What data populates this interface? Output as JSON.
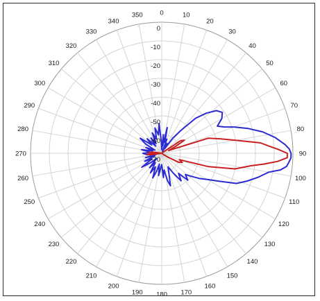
{
  "chart_data": {
    "type": "polar-line",
    "title": "",
    "angle_unit": "degrees",
    "angle_direction": "clockwise",
    "angle_zero": "top",
    "angle_ticks": [
      0,
      10,
      20,
      30,
      40,
      50,
      60,
      70,
      80,
      90,
      100,
      110,
      120,
      130,
      140,
      150,
      160,
      170,
      180,
      190,
      200,
      210,
      220,
      230,
      240,
      250,
      260,
      270,
      280,
      290,
      300,
      310,
      320,
      330,
      340,
      350
    ],
    "angle_tick_labels": [
      "0",
      "10",
      "20",
      "30",
      "40",
      "50",
      "60",
      "70",
      "80",
      "90",
      "100",
      "110",
      "120",
      "130",
      "140",
      "150",
      "160",
      "170",
      "180",
      "190",
      "200",
      "210",
      "220",
      "230",
      "240",
      "250",
      "260",
      "270",
      "280",
      "290",
      "300",
      "310",
      "320",
      "330",
      "340",
      "350"
    ],
    "radial_range": [
      -70,
      0
    ],
    "radial_ticks": [
      0,
      -10,
      -20,
      -30,
      -40,
      -50,
      -60,
      -70
    ],
    "radial_tick_labels": [
      "0",
      "-10",
      "-20",
      "-30",
      "-40",
      "-50",
      "-60",
      "-70"
    ],
    "grid": true,
    "series": [
      {
        "color": "#2a2ad0",
        "points": [
          [
            0,
            -68
          ],
          [
            5,
            -60
          ],
          [
            8,
            -66
          ],
          [
            12,
            -56
          ],
          [
            16,
            -64
          ],
          [
            20,
            -62
          ],
          [
            24,
            -69
          ],
          [
            28,
            -64
          ],
          [
            32,
            -67
          ],
          [
            36,
            -60
          ],
          [
            40,
            -54
          ],
          [
            44,
            -44
          ],
          [
            48,
            -38
          ],
          [
            52,
            -33
          ],
          [
            56,
            -31
          ],
          [
            60,
            -33
          ],
          [
            64,
            -37
          ],
          [
            67,
            -34
          ],
          [
            70,
            -29
          ],
          [
            74,
            -22
          ],
          [
            78,
            -15
          ],
          [
            82,
            -9
          ],
          [
            86,
            -4
          ],
          [
            88,
            -2
          ],
          [
            90,
            -1
          ],
          [
            92,
            -1
          ],
          [
            94,
            -2
          ],
          [
            96,
            -3
          ],
          [
            98,
            -6
          ],
          [
            100,
            -12
          ],
          [
            104,
            -17
          ],
          [
            108,
            -22
          ],
          [
            112,
            -27
          ],
          [
            116,
            -36
          ],
          [
            120,
            -42
          ],
          [
            124,
            -46
          ],
          [
            128,
            -50
          ],
          [
            132,
            -53
          ],
          [
            136,
            -50
          ],
          [
            140,
            -56
          ],
          [
            145,
            -52
          ],
          [
            150,
            -58
          ],
          [
            155,
            -62
          ],
          [
            160,
            -59
          ],
          [
            165,
            -52
          ],
          [
            168,
            -55
          ],
          [
            172,
            -61
          ],
          [
            176,
            -57
          ],
          [
            180,
            -64
          ],
          [
            184,
            -62
          ],
          [
            188,
            -58
          ],
          [
            192,
            -64
          ],
          [
            196,
            -60
          ],
          [
            200,
            -56
          ],
          [
            205,
            -62
          ],
          [
            210,
            -58
          ],
          [
            215,
            -64
          ],
          [
            220,
            -60
          ],
          [
            225,
            -66
          ],
          [
            230,
            -62
          ],
          [
            235,
            -57
          ],
          [
            240,
            -64
          ],
          [
            245,
            -60
          ],
          [
            250,
            -66
          ],
          [
            255,
            -61
          ],
          [
            260,
            -67
          ],
          [
            265,
            -62
          ],
          [
            270,
            -60
          ],
          [
            275,
            -64
          ],
          [
            280,
            -59
          ],
          [
            285,
            -65
          ],
          [
            290,
            -61
          ],
          [
            295,
            -66
          ],
          [
            300,
            -60
          ],
          [
            305,
            -56
          ],
          [
            310,
            -63
          ],
          [
            315,
            -59
          ],
          [
            320,
            -65
          ],
          [
            325,
            -60
          ],
          [
            330,
            -64
          ],
          [
            335,
            -58
          ],
          [
            340,
            -62
          ],
          [
            345,
            -56
          ],
          [
            350,
            -60
          ],
          [
            355,
            -54
          ],
          [
            358,
            -64
          ],
          [
            360,
            -68
          ]
        ]
      },
      {
        "color": "#c82020",
        "points": [
          [
            0,
            -70
          ],
          [
            30,
            -70
          ],
          [
            50,
            -69
          ],
          [
            56,
            -58
          ],
          [
            60,
            -56
          ],
          [
            64,
            -62
          ],
          [
            68,
            -66
          ],
          [
            72,
            -44
          ],
          [
            76,
            -38
          ],
          [
            80,
            -30
          ],
          [
            84,
            -17
          ],
          [
            86,
            -13
          ],
          [
            88,
            -8
          ],
          [
            90,
            -3
          ],
          [
            92,
            -3
          ],
          [
            94,
            -8
          ],
          [
            96,
            -15
          ],
          [
            98,
            -22
          ],
          [
            102,
            -30
          ],
          [
            106,
            -44
          ],
          [
            110,
            -60
          ],
          [
            114,
            -58
          ],
          [
            118,
            -60
          ],
          [
            122,
            -66
          ],
          [
            126,
            -69
          ],
          [
            140,
            -70
          ],
          [
            255,
            -70
          ],
          [
            262,
            -64
          ],
          [
            266,
            -62
          ],
          [
            270,
            -67
          ],
          [
            274,
            -63
          ],
          [
            278,
            -66
          ],
          [
            286,
            -70
          ],
          [
            360,
            -70
          ]
        ]
      }
    ]
  }
}
